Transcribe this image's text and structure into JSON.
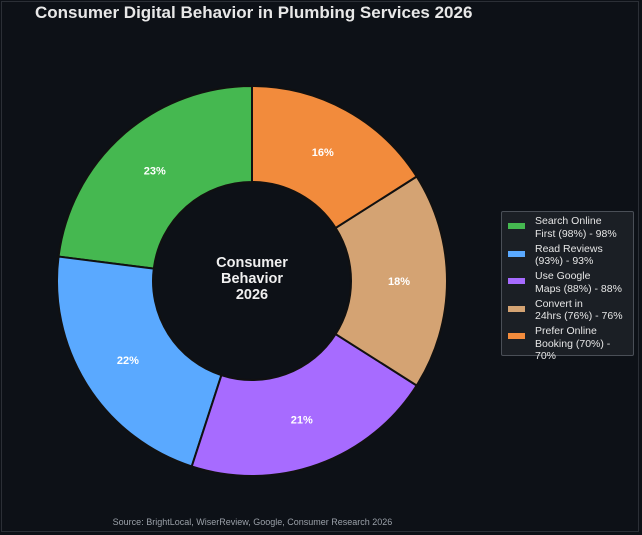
{
  "title": "Consumer Digital Behavior in Plumbing Services 2026",
  "center_label": [
    "Consumer",
    "Behavior",
    "2026"
  ],
  "source": "Source: BrightLocal, WiserReview, Google, Consumer Research 2026",
  "chart_data": {
    "type": "donut",
    "title": "Consumer Digital Behavior in Plumbing Services 2026",
    "slices": [
      {
        "label": "23%",
        "value": 23,
        "color": "#45b850",
        "legend": [
          "Search Online",
          "First (98%) - 98%"
        ]
      },
      {
        "label": "22%",
        "value": 22,
        "color": "#5aa9ff",
        "legend": [
          "Read Reviews",
          "(93%) - 93%"
        ]
      },
      {
        "label": "21%",
        "value": 21,
        "color": "#a76bff",
        "legend": [
          "Use Google",
          "Maps (88%) - 88%"
        ]
      },
      {
        "label": "18%",
        "value": 18,
        "color": "#d4a373",
        "legend": [
          "Convert in",
          "24hrs (76%) - 76%"
        ]
      },
      {
        "label": "16%",
        "value": 16,
        "color": "#f28b3c",
        "legend": [
          "Prefer Online",
          "Booking (70%) - 70%"
        ]
      }
    ],
    "legend_placement": "right",
    "start_angle_deg": 90,
    "direction": "counterclockwise"
  }
}
